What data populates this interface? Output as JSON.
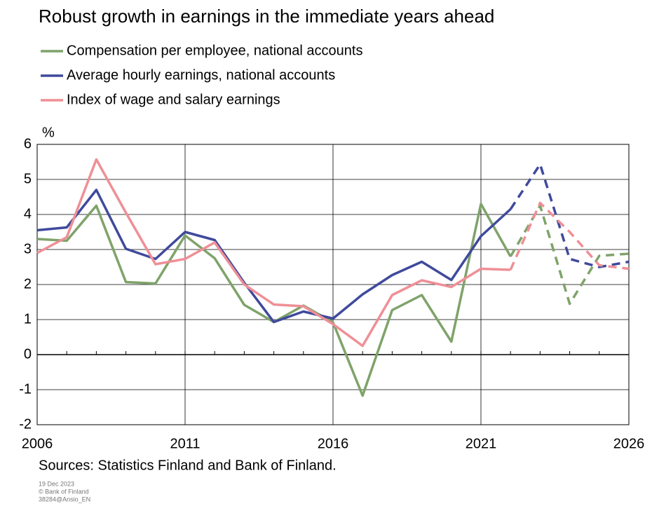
{
  "chart_data": {
    "type": "line",
    "title": "Robust growth in earnings in the immediate years ahead",
    "y_unit": "%",
    "source": "Sources: Statistics Finland and Bank of Finland.",
    "footnotes": [
      "19 Dec 2023",
      "© Bank of Finland",
      "38284@Ansio_EN"
    ],
    "x": [
      2006,
      2007,
      2008,
      2009,
      2010,
      2011,
      2012,
      2013,
      2014,
      2015,
      2016,
      2017,
      2018,
      2019,
      2020,
      2021,
      2022,
      2023,
      2024,
      2025,
      2026
    ],
    "xlim": [
      2006,
      2026
    ],
    "xticks": [
      2006,
      2011,
      2016,
      2021,
      2026
    ],
    "ylim": [
      -2,
      6
    ],
    "yticks": [
      -2,
      -1,
      0,
      1,
      2,
      3,
      4,
      5,
      6
    ],
    "grid": true,
    "dashed_from": 2022,
    "series": [
      {
        "name": "Compensation per employee, national accounts",
        "color": "#7fa36a",
        "values": [
          3.3,
          3.25,
          4.25,
          2.07,
          2.03,
          3.4,
          2.75,
          1.42,
          0.93,
          1.4,
          0.92,
          -1.17,
          1.27,
          1.7,
          0.37,
          4.3,
          2.8,
          4.25,
          1.45,
          2.82,
          2.88
        ]
      },
      {
        "name": "Average hourly earnings, national accounts",
        "color": "#3f4a9c",
        "values": [
          3.55,
          3.63,
          4.7,
          3.02,
          2.73,
          3.5,
          3.27,
          2.05,
          0.93,
          1.23,
          1.03,
          1.72,
          2.27,
          2.65,
          2.13,
          3.38,
          4.15,
          5.43,
          2.73,
          2.5,
          2.65
        ]
      },
      {
        "name": "Index of wage and salary earnings",
        "color": "#ef8f96",
        "values": [
          2.9,
          3.35,
          5.57,
          4.05,
          2.58,
          2.73,
          3.2,
          2.0,
          1.43,
          1.38,
          0.87,
          0.25,
          1.7,
          2.12,
          1.93,
          2.45,
          2.42,
          4.33,
          3.5,
          2.55,
          2.45
        ]
      }
    ]
  }
}
